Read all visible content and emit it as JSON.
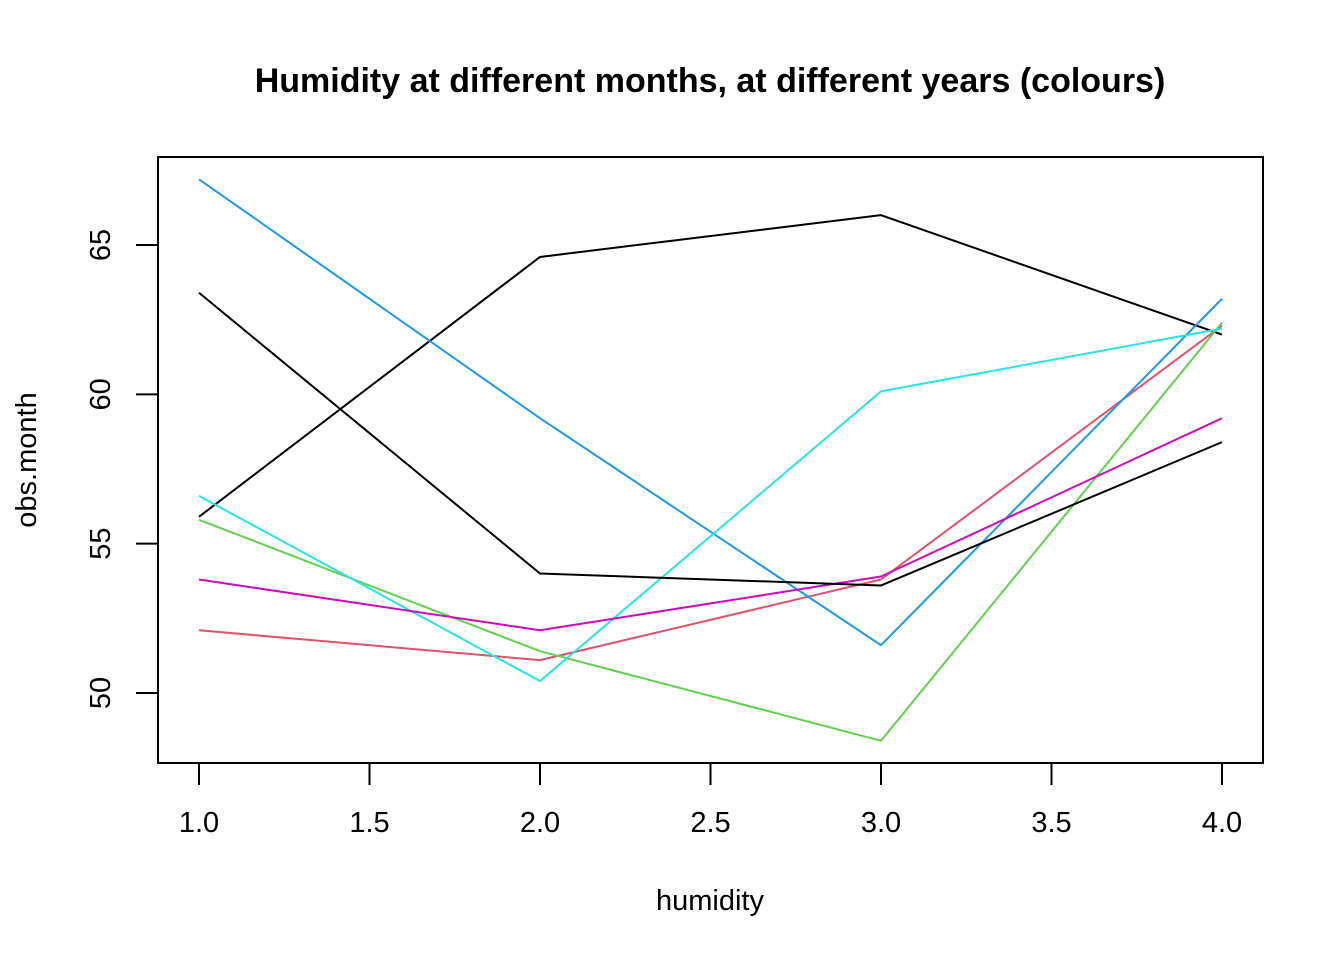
{
  "chart_data": {
    "type": "line",
    "title": "Humidity at different months, at different years (colours)",
    "xlabel": "humidity",
    "ylabel": "obs.month",
    "x": [
      1,
      2,
      3,
      4
    ],
    "xlim": [
      1,
      4
    ],
    "ylim": [
      48,
      67
    ],
    "x_ticks": [
      "1.0",
      "1.5",
      "2.0",
      "2.5",
      "3.0",
      "3.5",
      "4.0"
    ],
    "y_ticks": [
      "50",
      "55",
      "60",
      "65"
    ],
    "grid": false,
    "legend": "none",
    "series": [
      {
        "color": "#000000",
        "values": [
          55.9,
          64.6,
          66.0,
          62.0
        ]
      },
      {
        "color": "#DF536B",
        "values": [
          52.1,
          51.1,
          53.8,
          62.3
        ]
      },
      {
        "color": "#61D04F",
        "values": [
          55.8,
          51.4,
          48.4,
          62.4
        ]
      },
      {
        "color": "#2297E6",
        "values": [
          67.2,
          59.2,
          51.6,
          63.2
        ]
      },
      {
        "color": "#28E2E5",
        "values": [
          56.6,
          50.4,
          60.1,
          62.2
        ]
      },
      {
        "color": "#CD0BBC",
        "values": [
          53.8,
          52.1,
          53.9,
          59.2
        ]
      },
      {
        "color": "#000000",
        "values": [
          63.4,
          54.0,
          53.6,
          58.4
        ]
      }
    ]
  }
}
